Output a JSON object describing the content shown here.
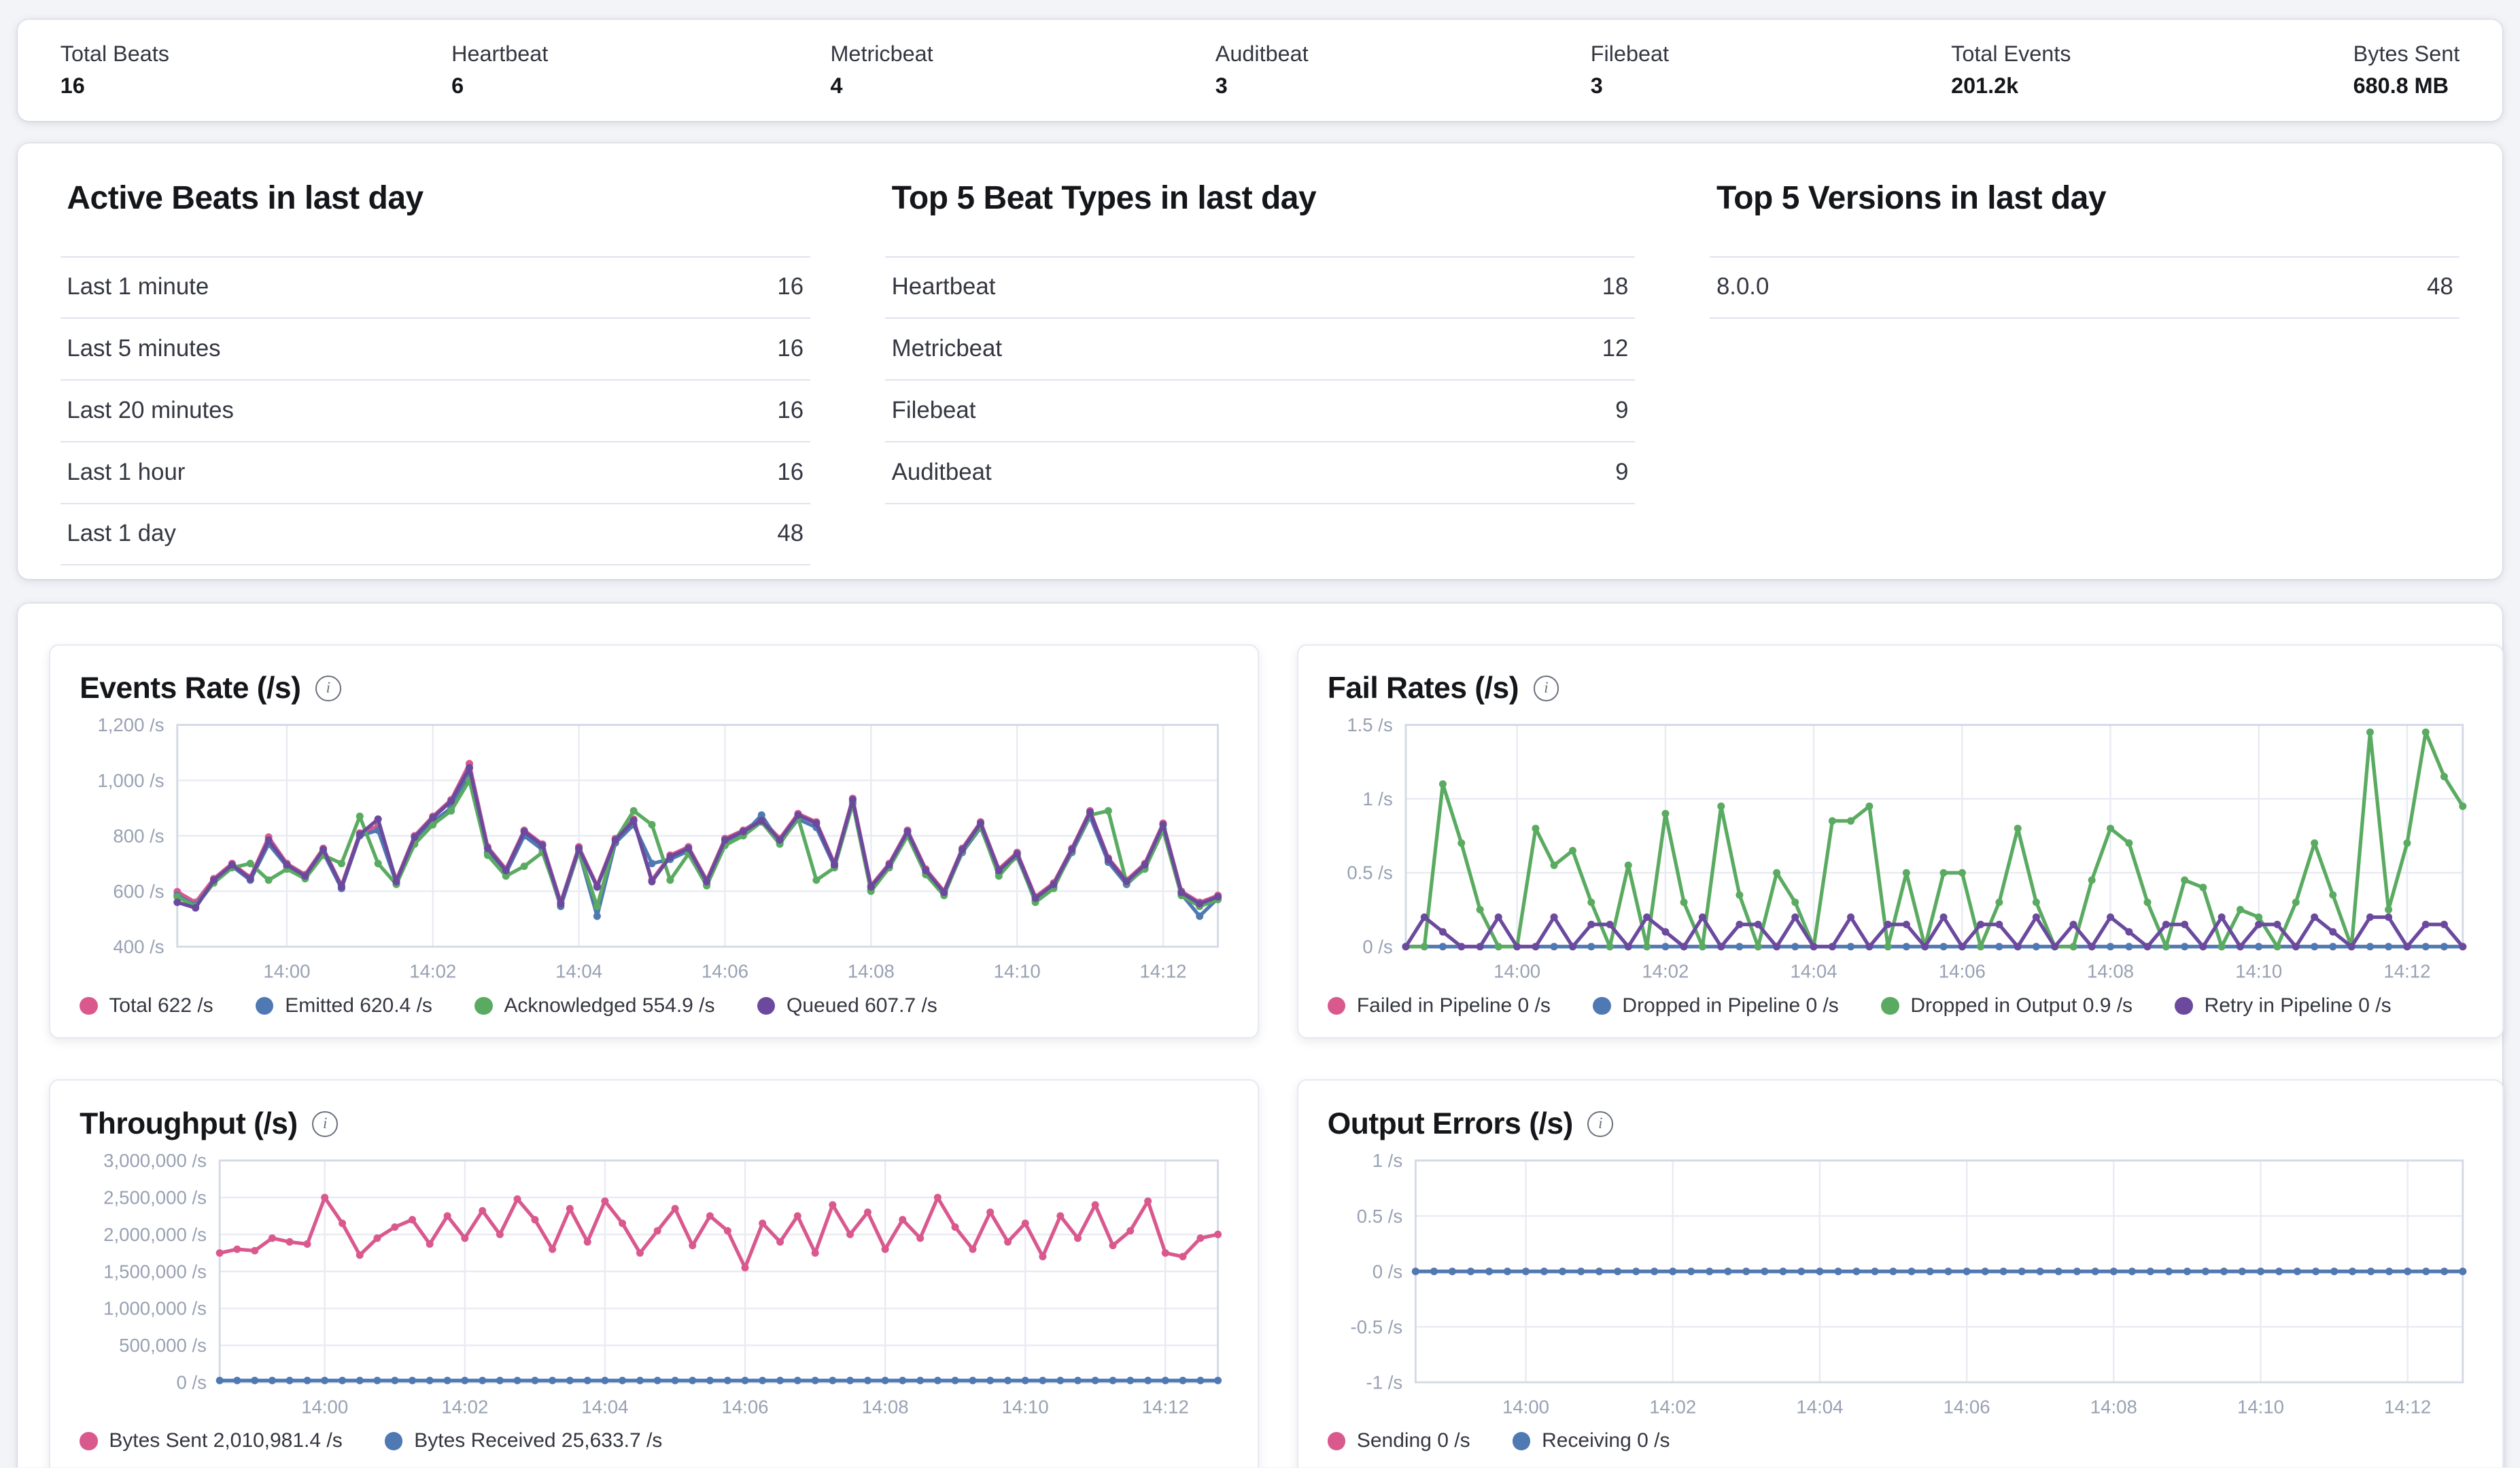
{
  "summary_bar": {
    "items": [
      {
        "label": "Total Beats",
        "value": "16"
      },
      {
        "label": "Heartbeat",
        "value": "6"
      },
      {
        "label": "Metricbeat",
        "value": "4"
      },
      {
        "label": "Auditbeat",
        "value": "3"
      },
      {
        "label": "Filebeat",
        "value": "3"
      },
      {
        "label": "Total Events",
        "value": "201.2k"
      },
      {
        "label": "Bytes Sent",
        "value": "680.8 MB"
      }
    ]
  },
  "tables": [
    {
      "title": "Active Beats in last day",
      "rows": [
        [
          "Last 1 minute",
          "16"
        ],
        [
          "Last 5 minutes",
          "16"
        ],
        [
          "Last 20 minutes",
          "16"
        ],
        [
          "Last 1 hour",
          "16"
        ],
        [
          "Last 1 day",
          "48"
        ]
      ]
    },
    {
      "title": "Top 5 Beat Types in last day",
      "rows": [
        [
          "Heartbeat",
          "18"
        ],
        [
          "Metricbeat",
          "12"
        ],
        [
          "Filebeat",
          "9"
        ],
        [
          "Auditbeat",
          "9"
        ]
      ]
    },
    {
      "title": "Top 5 Versions in last day",
      "rows": [
        [
          "8.0.0",
          "48"
        ]
      ]
    }
  ],
  "chart_data": [
    {
      "type": "line",
      "title": "Events Rate (/s)",
      "grid": true,
      "legend_position": "bottom",
      "ylim": [
        400,
        1200
      ],
      "yticks": [
        {
          "value": 1200,
          "label": "1,200 /s"
        },
        {
          "value": 1000,
          "label": "1,000 /s"
        },
        {
          "value": 800,
          "label": "800 /s"
        },
        {
          "value": 600,
          "label": "600 /s"
        },
        {
          "value": 400,
          "label": "400 /s"
        }
      ],
      "x_tick_labels": [
        "14:00",
        "14:02",
        "14:04",
        "14:06",
        "14:08",
        "14:10",
        "14:12"
      ],
      "x_tick_indices": [
        6,
        14,
        22,
        30,
        38,
        46,
        54
      ],
      "series": [
        {
          "name": "Total",
          "legend": "Total 622 /s",
          "color": "#d9598f",
          "values": [
            598,
            560,
            645,
            700,
            650,
            795,
            700,
            660,
            755,
            620,
            810,
            835,
            640,
            800,
            870,
            930,
            1060,
            760,
            680,
            820,
            770,
            560,
            760,
            620,
            790,
            860,
            640,
            730,
            760,
            640,
            790,
            820,
            860,
            790,
            880,
            850,
            700,
            935,
            620,
            700,
            820,
            680,
            600,
            755,
            850,
            680,
            740,
            580,
            630,
            755,
            890,
            720,
            640,
            700,
            845,
            600,
            560,
            585
          ]
        },
        {
          "name": "Emitted",
          "legend": "Emitted 620.4 /s",
          "color": "#4e79b2",
          "values": [
            585,
            550,
            635,
            690,
            640,
            770,
            690,
            650,
            740,
            610,
            800,
            820,
            630,
            780,
            850,
            900,
            1020,
            740,
            665,
            800,
            750,
            545,
            745,
            510,
            775,
            840,
            700,
            715,
            745,
            625,
            775,
            805,
            875,
            775,
            860,
            830,
            690,
            920,
            605,
            690,
            805,
            665,
            590,
            740,
            830,
            665,
            725,
            565,
            615,
            740,
            870,
            705,
            625,
            685,
            825,
            590,
            510,
            575
          ]
        },
        {
          "name": "Acknowledged",
          "legend": "Acknowledged 554.9 /s",
          "color": "#5aab61",
          "values": [
            580,
            545,
            630,
            685,
            700,
            640,
            680,
            645,
            730,
            700,
            870,
            700,
            625,
            770,
            840,
            890,
            1000,
            730,
            655,
            690,
            740,
            555,
            745,
            545,
            785,
            890,
            840,
            640,
            735,
            620,
            765,
            800,
            850,
            770,
            865,
            640,
            685,
            915,
            600,
            685,
            800,
            660,
            585,
            745,
            835,
            655,
            730,
            560,
            610,
            745,
            875,
            890,
            630,
            680,
            820,
            585,
            545,
            570
          ]
        },
        {
          "name": "Queued",
          "legend": "Queued 607.7 /s",
          "color": "#6b4a9e",
          "values": [
            560,
            540,
            640,
            695,
            645,
            785,
            695,
            655,
            750,
            615,
            805,
            860,
            635,
            795,
            865,
            925,
            1045,
            755,
            675,
            815,
            765,
            555,
            755,
            615,
            785,
            855,
            635,
            725,
            755,
            635,
            785,
            815,
            855,
            785,
            875,
            845,
            695,
            930,
            615,
            695,
            815,
            675,
            595,
            750,
            845,
            675,
            735,
            575,
            625,
            750,
            885,
            715,
            635,
            695,
            840,
            595,
            555,
            580
          ]
        }
      ]
    },
    {
      "type": "line",
      "title": "Fail Rates (/s)",
      "grid": true,
      "legend_position": "bottom",
      "ylim": [
        0,
        1.5
      ],
      "yticks": [
        {
          "value": 1.5,
          "label": "1.5 /s"
        },
        {
          "value": 1,
          "label": "1 /s"
        },
        {
          "value": 0.5,
          "label": "0.5 /s"
        },
        {
          "value": 0,
          "label": "0 /s"
        }
      ],
      "x_tick_labels": [
        "14:00",
        "14:02",
        "14:04",
        "14:06",
        "14:08",
        "14:10",
        "14:12"
      ],
      "x_tick_indices": [
        6,
        14,
        22,
        30,
        38,
        46,
        54
      ],
      "series": [
        {
          "name": "Failed in Pipeline",
          "legend": "Failed in Pipeline 0 /s",
          "color": "#d9598f",
          "values": [
            0,
            0,
            0,
            0,
            0,
            0,
            0,
            0,
            0,
            0,
            0,
            0,
            0,
            0,
            0,
            0,
            0,
            0,
            0,
            0,
            0,
            0,
            0,
            0,
            0,
            0,
            0,
            0,
            0,
            0,
            0,
            0,
            0,
            0,
            0,
            0,
            0,
            0,
            0,
            0,
            0,
            0,
            0,
            0,
            0,
            0,
            0,
            0,
            0,
            0,
            0,
            0,
            0,
            0,
            0,
            0,
            0,
            0
          ]
        },
        {
          "name": "Dropped in Pipeline",
          "legend": "Dropped in Pipeline 0 /s",
          "color": "#4e79b2",
          "values": [
            0,
            0,
            0,
            0,
            0,
            0,
            0,
            0,
            0,
            0,
            0,
            0,
            0,
            0,
            0,
            0,
            0,
            0,
            0,
            0,
            0,
            0,
            0,
            0,
            0,
            0,
            0,
            0,
            0,
            0,
            0,
            0,
            0,
            0,
            0,
            0,
            0,
            0,
            0,
            0,
            0,
            0,
            0,
            0,
            0,
            0,
            0,
            0,
            0,
            0,
            0,
            0,
            0,
            0,
            0,
            0,
            0,
            0
          ]
        },
        {
          "name": "Dropped in Output",
          "legend": "Dropped in Output 0.9 /s",
          "color": "#5aab61",
          "values": [
            0,
            0,
            1.1,
            0.7,
            0.25,
            0,
            0,
            0.8,
            0.55,
            0.65,
            0.3,
            0,
            0.55,
            0,
            0.9,
            0.3,
            0,
            0.95,
            0.35,
            0,
            0.5,
            0.3,
            0,
            0.85,
            0.85,
            0.95,
            0,
            0.5,
            0,
            0.5,
            0.5,
            0,
            0.3,
            0.8,
            0.3,
            0,
            0,
            0.45,
            0.8,
            0.7,
            0.3,
            0,
            0.45,
            0.4,
            0,
            0.25,
            0.2,
            0,
            0.3,
            0.7,
            0.35,
            0,
            1.45,
            0.25,
            0.7,
            1.45,
            1.15,
            0.95
          ]
        },
        {
          "name": "Retry in Pipeline",
          "legend": "Retry in Pipeline 0 /s",
          "color": "#6b4a9e",
          "values": [
            0,
            0.2,
            0.1,
            0,
            0,
            0.2,
            0,
            0,
            0.2,
            0,
            0.15,
            0.15,
            0,
            0.2,
            0.1,
            0,
            0.2,
            0,
            0.15,
            0.15,
            0,
            0.2,
            0,
            0,
            0.2,
            0,
            0.15,
            0.15,
            0,
            0.2,
            0,
            0.15,
            0.15,
            0,
            0.2,
            0,
            0.15,
            0,
            0.2,
            0.1,
            0,
            0.15,
            0.15,
            0,
            0.2,
            0,
            0.15,
            0.15,
            0,
            0.2,
            0.1,
            0,
            0.2,
            0.2,
            0,
            0.15,
            0.15,
            0
          ]
        }
      ]
    },
    {
      "type": "line",
      "title": "Throughput (/s)",
      "grid": true,
      "legend_position": "bottom",
      "ylim": [
        0,
        3000000
      ],
      "yticks": [
        {
          "value": 3000000,
          "label": "3,000,000 /s"
        },
        {
          "value": 2500000,
          "label": "2,500,000 /s"
        },
        {
          "value": 2000000,
          "label": "2,000,000 /s"
        },
        {
          "value": 1500000,
          "label": "1,500,000 /s"
        },
        {
          "value": 1000000,
          "label": "1,000,000 /s"
        },
        {
          "value": 500000,
          "label": "500,000 /s"
        },
        {
          "value": 0,
          "label": "0 /s"
        }
      ],
      "x_tick_labels": [
        "14:00",
        "14:02",
        "14:04",
        "14:06",
        "14:08",
        "14:10",
        "14:12"
      ],
      "x_tick_indices": [
        6,
        14,
        22,
        30,
        38,
        46,
        54
      ],
      "series": [
        {
          "name": "Bytes Sent",
          "legend": "Bytes Sent 2,010,981.4 /s",
          "color": "#d9598f",
          "values": [
            1750000,
            1800000,
            1780000,
            1950000,
            1900000,
            1870000,
            2500000,
            2150000,
            1720000,
            1950000,
            2100000,
            2200000,
            1870000,
            2250000,
            1950000,
            2320000,
            2000000,
            2480000,
            2200000,
            1800000,
            2350000,
            1900000,
            2450000,
            2150000,
            1750000,
            2050000,
            2350000,
            1850000,
            2250000,
            2050000,
            1550000,
            2150000,
            1900000,
            2250000,
            1750000,
            2400000,
            2000000,
            2300000,
            1800000,
            2200000,
            1950000,
            2500000,
            2100000,
            1800000,
            2300000,
            1900000,
            2150000,
            1700000,
            2250000,
            1950000,
            2400000,
            1850000,
            2050000,
            2450000,
            1750000,
            1700000,
            1950000,
            2000000
          ]
        },
        {
          "name": "Bytes Received",
          "legend": "Bytes Received 25,633.7 /s",
          "color": "#4e79b2",
          "values": [
            25000,
            25000,
            25000,
            25000,
            25000,
            25000,
            25000,
            25000,
            25000,
            25000,
            25000,
            25000,
            25000,
            25000,
            25000,
            25000,
            25000,
            25000,
            25000,
            25000,
            25000,
            25000,
            25000,
            25000,
            25000,
            25000,
            25000,
            25000,
            25000,
            25000,
            25000,
            25000,
            25000,
            25000,
            25000,
            25000,
            25000,
            25000,
            25000,
            25000,
            25000,
            25000,
            25000,
            25000,
            25000,
            25000,
            25000,
            25000,
            25000,
            25000,
            25000,
            25000,
            25000,
            25000,
            25000,
            25000,
            25000,
            25000
          ]
        }
      ]
    },
    {
      "type": "line",
      "title": "Output Errors (/s)",
      "grid": true,
      "legend_position": "bottom",
      "ylim": [
        -1,
        1
      ],
      "yticks": [
        {
          "value": 1,
          "label": "1 /s"
        },
        {
          "value": 0.5,
          "label": "0.5 /s"
        },
        {
          "value": 0,
          "label": "0 /s"
        },
        {
          "value": -0.5,
          "label": "-0.5 /s"
        },
        {
          "value": -1,
          "label": "-1 /s"
        }
      ],
      "x_tick_labels": [
        "14:00",
        "14:02",
        "14:04",
        "14:06",
        "14:08",
        "14:10",
        "14:12"
      ],
      "x_tick_indices": [
        6,
        14,
        22,
        30,
        38,
        46,
        54
      ],
      "series": [
        {
          "name": "Sending",
          "legend": "Sending 0 /s",
          "color": "#d9598f",
          "values": [
            0,
            0,
            0,
            0,
            0,
            0,
            0,
            0,
            0,
            0,
            0,
            0,
            0,
            0,
            0,
            0,
            0,
            0,
            0,
            0,
            0,
            0,
            0,
            0,
            0,
            0,
            0,
            0,
            0,
            0,
            0,
            0,
            0,
            0,
            0,
            0,
            0,
            0,
            0,
            0,
            0,
            0,
            0,
            0,
            0,
            0,
            0,
            0,
            0,
            0,
            0,
            0,
            0,
            0,
            0,
            0,
            0,
            0
          ]
        },
        {
          "name": "Receiving",
          "legend": "Receiving 0 /s",
          "color": "#4e79b2",
          "values": [
            0,
            0,
            0,
            0,
            0,
            0,
            0,
            0,
            0,
            0,
            0,
            0,
            0,
            0,
            0,
            0,
            0,
            0,
            0,
            0,
            0,
            0,
            0,
            0,
            0,
            0,
            0,
            0,
            0,
            0,
            0,
            0,
            0,
            0,
            0,
            0,
            0,
            0,
            0,
            0,
            0,
            0,
            0,
            0,
            0,
            0,
            0,
            0,
            0,
            0,
            0,
            0,
            0,
            0,
            0,
            0,
            0,
            0
          ]
        }
      ]
    }
  ]
}
